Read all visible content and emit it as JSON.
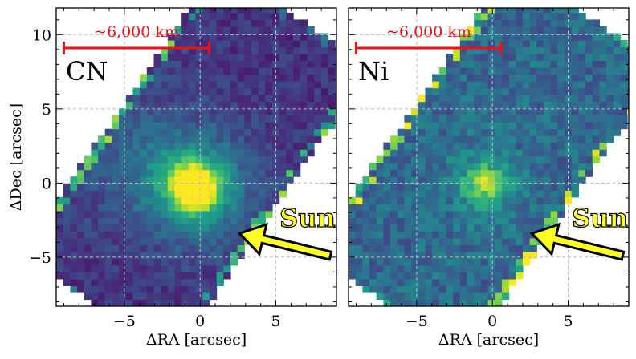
{
  "chart_data": [
    {
      "type": "heatmap",
      "panel_label": "CN",
      "scale_bar_label": "~6,000 km",
      "scale_bar": {
        "x_start": -9.0,
        "x_end": 0.6,
        "y": 9.1
      },
      "peak": {
        "x": -0.3,
        "y": -0.3,
        "value": 1.0
      },
      "xlabel": "ΔRA [arcsec]",
      "ylabel": "ΔDec [arcsec]",
      "xlim": [
        -9.5,
        9.0
      ],
      "ylim": [
        -8.3,
        11.8
      ],
      "xticks": [
        -5,
        0,
        5
      ],
      "yticks": [
        -5,
        0,
        5,
        10
      ],
      "annotation": {
        "text": "Sun",
        "arrow_from": [
          8.6,
          -4.9
        ],
        "arrow_to": [
          2.6,
          -3.4
        ]
      },
      "grid": true,
      "colormap": "viridis"
    },
    {
      "type": "heatmap",
      "panel_label": "Ni",
      "scale_bar_label": "~6,000 km",
      "scale_bar": {
        "x_start": -9.0,
        "x_end": 0.6,
        "y": 9.1
      },
      "peak": {
        "x": -0.5,
        "y": 0.0,
        "value": 0.75
      },
      "xlabel": "ΔRA [arcsec]",
      "ylabel": "",
      "xlim": [
        -9.5,
        9.0
      ],
      "ylim": [
        -8.3,
        11.8
      ],
      "xticks": [
        -5,
        0,
        5
      ],
      "yticks": [
        -5,
        0,
        5,
        10
      ],
      "annotation": {
        "text": "Sun",
        "arrow_from": [
          8.6,
          -4.9
        ],
        "arrow_to": [
          2.6,
          -3.4
        ]
      },
      "grid": true,
      "colormap": "viridis"
    }
  ],
  "colors": {
    "scale_bar": "#ee1111",
    "arrow_fill": "#ffff22",
    "arrow_edge": "#000000",
    "grid": "#bbbbbb"
  }
}
